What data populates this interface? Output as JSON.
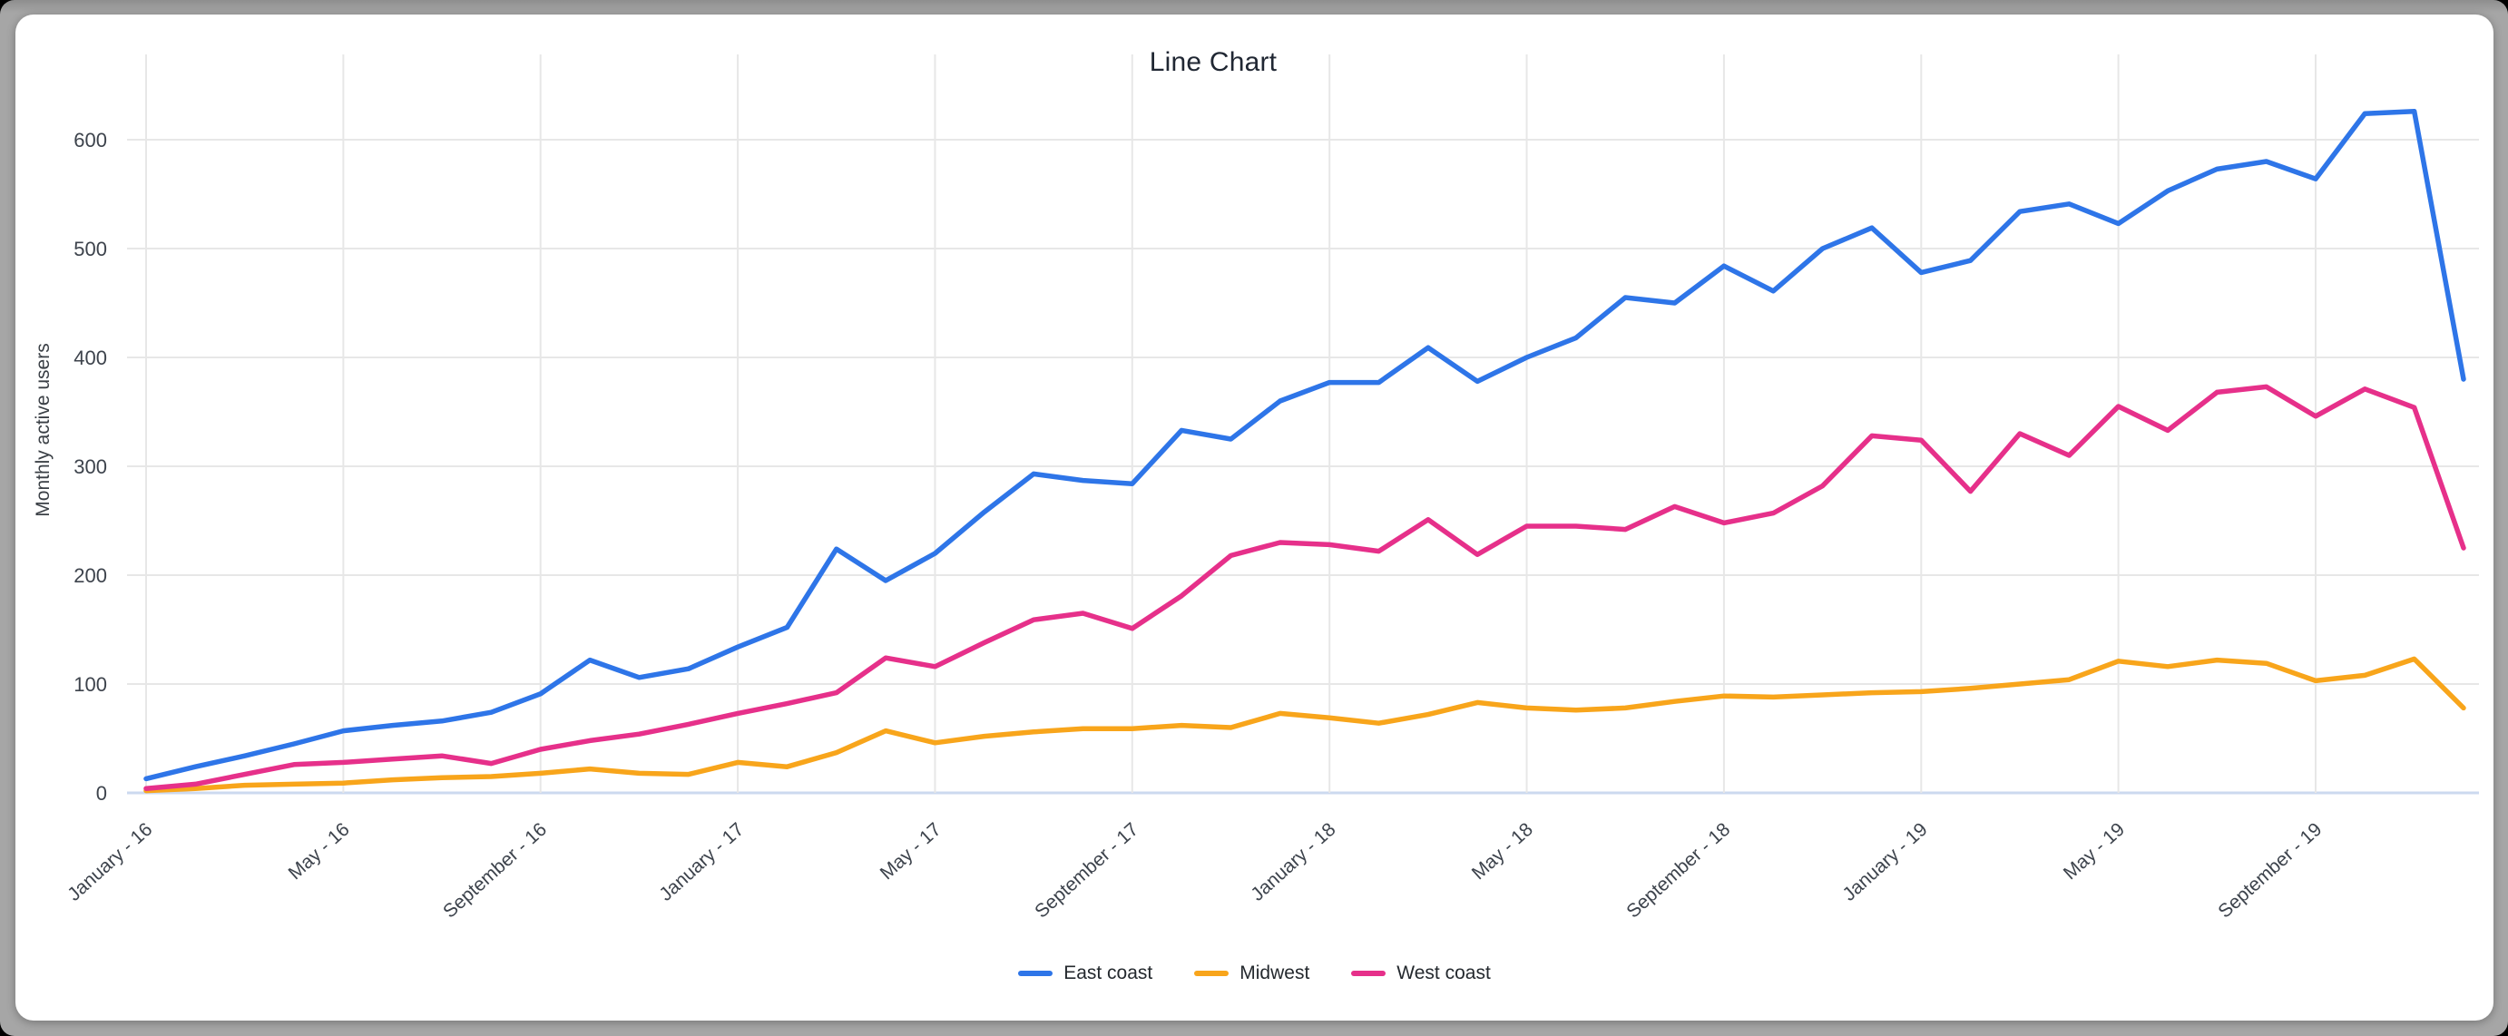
{
  "window": {
    "frame_color": "#a6a6a6",
    "card_color": "#ffffff"
  },
  "chart_data": {
    "type": "line",
    "title": "Line Chart",
    "xlabel": "",
    "ylabel": "Monthly active users",
    "ylim": [
      0,
      650
    ],
    "y_ticks": [
      0,
      100,
      200,
      300,
      400,
      500,
      600
    ],
    "grid": true,
    "legend_position": "bottom",
    "x_tick_positions": [
      0,
      4,
      8,
      12,
      16,
      20,
      24,
      28,
      32,
      36,
      40,
      44
    ],
    "x_tick_labels": [
      "January - 16",
      "May - 16",
      "September - 16",
      "January - 17",
      "May - 17",
      "September - 17",
      "January - 18",
      "May - 18",
      "September - 18",
      "January - 19",
      "May - 19",
      "September - 19"
    ],
    "months_count": 48,
    "series": [
      {
        "name": "East coast",
        "color": "#2e75e8",
        "values": [
          13,
          24,
          34,
          45,
          57,
          62,
          66,
          74,
          91,
          122,
          106,
          114,
          134,
          152,
          224,
          195,
          220,
          258,
          293,
          287,
          284,
          333,
          325,
          360,
          377,
          377,
          409,
          378,
          400,
          418,
          455,
          450,
          484,
          461,
          500,
          519,
          478,
          489,
          534,
          541,
          523,
          553,
          573,
          580,
          564,
          624,
          626,
          380
        ]
      },
      {
        "name": "Midwest",
        "color": "#f8a51b",
        "values": [
          2,
          4,
          7,
          8,
          9,
          12,
          14,
          15,
          18,
          22,
          18,
          17,
          28,
          24,
          37,
          57,
          46,
          52,
          56,
          59,
          59,
          62,
          60,
          73,
          69,
          64,
          72,
          83,
          78,
          76,
          78,
          84,
          89,
          88,
          90,
          92,
          93,
          96,
          100,
          104,
          121,
          116,
          122,
          119,
          103,
          108,
          123,
          78
        ]
      },
      {
        "name": "West coast",
        "color": "#e6308a",
        "values": [
          4,
          8,
          17,
          26,
          28,
          31,
          34,
          27,
          40,
          48,
          54,
          63,
          73,
          82,
          92,
          124,
          116,
          138,
          159,
          165,
          151,
          181,
          218,
          230,
          228,
          222,
          251,
          219,
          245,
          245,
          242,
          263,
          248,
          257,
          282,
          328,
          324,
          277,
          330,
          310,
          355,
          333,
          368,
          373,
          346,
          371,
          354,
          225
        ]
      }
    ],
    "style": {
      "gridline_color": "#e7e7e7",
      "baseline_color": "#ccd9ef",
      "tick_label_color": "#3d434c",
      "title_color": "#202733",
      "line_width": 5.5
    }
  }
}
